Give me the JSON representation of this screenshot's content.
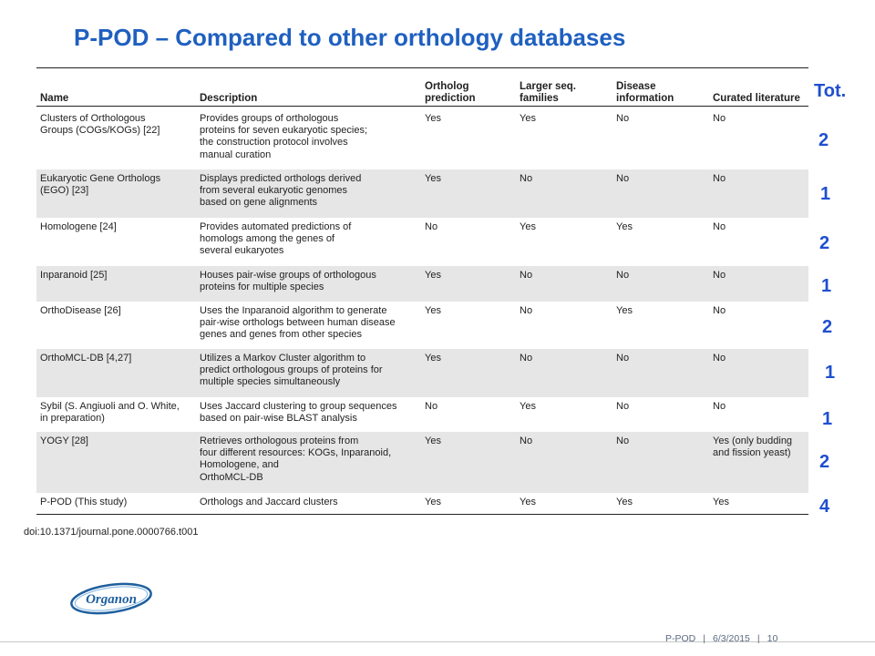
{
  "slide": {
    "title": "P-POD – Compared to other orthology databases"
  },
  "table": {
    "headers": [
      "Name",
      "Description",
      "Ortholog\nprediction",
      "Larger seq.\nfamilies",
      "Disease\ninformation",
      "Curated literature"
    ],
    "rows": [
      {
        "name": "Clusters of Orthologous\nGroups (COGs/KOGs) [22]",
        "description": "Provides groups of orthologous\nproteins for seven eukaryotic species;\nthe construction protocol involves\nmanual curation",
        "ortholog": "Yes",
        "larger": "Yes",
        "disease": "No",
        "curated": "No",
        "shaded": false
      },
      {
        "name": "Eukaryotic Gene Orthologs\n(EGO) [23]",
        "description": "Displays predicted orthologs derived\nfrom several eukaryotic genomes\nbased on gene alignments",
        "ortholog": "Yes",
        "larger": "No",
        "disease": "No",
        "curated": "No",
        "shaded": true
      },
      {
        "name": "Homologene [24]",
        "description": "Provides automated predictions of\nhomologs among the genes of\nseveral eukaryotes",
        "ortholog": "No",
        "larger": "Yes",
        "disease": "Yes",
        "curated": "No",
        "shaded": false
      },
      {
        "name": "Inparanoid [25]",
        "description": "Houses pair-wise groups of orthologous\nproteins for multiple species",
        "ortholog": "Yes",
        "larger": "No",
        "disease": "No",
        "curated": "No",
        "shaded": true
      },
      {
        "name": "OrthoDisease [26]",
        "description": "Uses the Inparanoid algorithm to generate\npair-wise orthologs between human disease\ngenes and genes from other species",
        "ortholog": "Yes",
        "larger": "No",
        "disease": "Yes",
        "curated": "No",
        "shaded": false
      },
      {
        "name": "OrthoMCL-DB [4,27]",
        "description": "Utilizes a Markov Cluster algorithm to\npredict orthologous groups of proteins for\nmultiple species simultaneously",
        "ortholog": "Yes",
        "larger": "No",
        "disease": "No",
        "curated": "No",
        "shaded": true
      },
      {
        "name": "Sybil (S. Angiuoli and O. White,\nin preparation)",
        "description": "Uses Jaccard clustering to group sequences\nbased on pair-wise BLAST analysis",
        "ortholog": "No",
        "larger": "Yes",
        "disease": "No",
        "curated": "No",
        "shaded": false
      },
      {
        "name": "YOGY [28]",
        "description": "Retrieves orthologous proteins from\nfour different resources: KOGs, Inparanoid,\nHomologene, and\nOrthoMCL-DB",
        "ortholog": "Yes",
        "larger": "No",
        "disease": "No",
        "curated": "Yes (only budding\nand fission yeast)",
        "shaded": true
      },
      {
        "name": "P-POD (This study)",
        "description": "Orthologs and Jaccard clusters",
        "ortholog": "Yes",
        "larger": "Yes",
        "disease": "Yes",
        "curated": "Yes",
        "shaded": false
      }
    ],
    "doi": "doi:10.1371/journal.pone.0000766.t001"
  },
  "totals": {
    "header": "Tot.",
    "values": [
      "2",
      "1",
      "2",
      "1",
      "2",
      "1",
      "1",
      "2",
      "4"
    ]
  },
  "logo": {
    "text": "Organon"
  },
  "footer": {
    "section": "P-POD",
    "date": "6/3/2015",
    "page": "10"
  },
  "colors": {
    "title": "#1f60c0",
    "totals": "#1f4fd0",
    "logo": "#1f5f9e",
    "shading": "#e6e6e6"
  }
}
